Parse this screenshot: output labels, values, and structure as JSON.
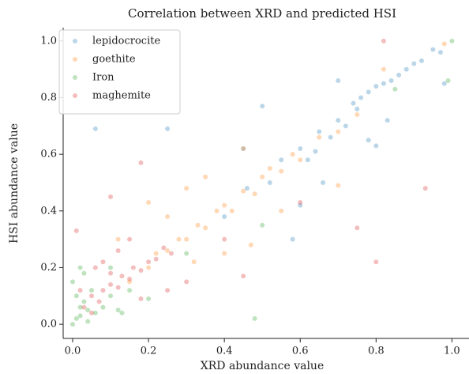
{
  "chart_data": {
    "type": "scatter",
    "title": "Correlation between XRD and predicted HSI",
    "x_label": "XRD abundance value",
    "y_label": "HSI abundance value",
    "xlim": [
      -0.025,
      1.045
    ],
    "ylim": [
      -0.05,
      1.047
    ],
    "xticks": [
      {
        "value": 0,
        "label": "0.0"
      },
      0.2,
      0.4,
      0.6,
      0.8,
      {
        "value": 1,
        "label": "1.0"
      }
    ],
    "yticks": [
      {
        "value": 0,
        "label": "0.0"
      },
      0.2,
      0.4,
      0.6,
      0.8,
      {
        "value": 1,
        "label": "1.0"
      }
    ],
    "legend": "upper left",
    "grid": false,
    "series": [
      {
        "name": "lepidocrocite",
        "color": "#1f77b4",
        "x": [
          0.55,
          0.6,
          0.62,
          0.65,
          0.68,
          0.7,
          0.72,
          0.74,
          0.75,
          0.76,
          0.78,
          0.8,
          0.82,
          0.84,
          0.86,
          0.88,
          0.9,
          0.92,
          0.95,
          0.97,
          0.06,
          0.25,
          0.5,
          0.6,
          0.66,
          0.7,
          0.78,
          0.83,
          0.98,
          0.45,
          0.52,
          0.58,
          0.4,
          0.46,
          0.8,
          0.64
        ],
        "y": [
          0.58,
          0.62,
          0.58,
          0.68,
          0.66,
          0.72,
          0.7,
          0.78,
          0.76,
          0.8,
          0.82,
          0.84,
          0.85,
          0.86,
          0.88,
          0.9,
          0.92,
          0.93,
          0.97,
          0.96,
          0.69,
          0.69,
          0.77,
          0.42,
          0.5,
          0.86,
          0.65,
          0.72,
          0.85,
          0.62,
          0.5,
          0.3,
          0.38,
          0.48,
          0.63,
          0.61
        ]
      },
      {
        "name": "goethite",
        "color": "#ff7f0e",
        "x": [
          0.15,
          0.2,
          0.22,
          0.25,
          0.28,
          0.3,
          0.33,
          0.35,
          0.38,
          0.4,
          0.42,
          0.45,
          0.48,
          0.5,
          0.52,
          0.55,
          0.58,
          0.6,
          0.65,
          0.7,
          0.75,
          0.3,
          0.2,
          0.12,
          0.35,
          0.4,
          0.47,
          0.55,
          0.45,
          0.7,
          0.82,
          0.98,
          0.32,
          0.25
        ],
        "y": [
          0.15,
          0.2,
          0.25,
          0.26,
          0.3,
          0.3,
          0.35,
          0.34,
          0.4,
          0.42,
          0.4,
          0.47,
          0.46,
          0.52,
          0.55,
          0.54,
          0.6,
          0.58,
          0.66,
          0.68,
          0.74,
          0.48,
          0.43,
          0.3,
          0.52,
          0.25,
          0.28,
          0.4,
          0.62,
          0.49,
          0.9,
          0.99,
          0.22,
          0.38
        ]
      },
      {
        "name": "Iron",
        "color": "#2ca02c",
        "x": [
          0,
          0.01,
          0.02,
          0.02,
          0.03,
          0.01,
          0.04,
          0.05,
          0,
          0.03,
          0.02,
          0.06,
          0.08,
          0.1,
          0.12,
          0.15,
          0.2,
          0.1,
          0.3,
          0.5,
          0.48,
          0.85,
          0.99,
          1,
          0.13,
          0.04
        ],
        "y": [
          0,
          0.02,
          0.03,
          0.06,
          0.08,
          0.1,
          0.05,
          0.12,
          0.15,
          0.18,
          0.2,
          0.04,
          0.06,
          0.1,
          0.05,
          0.12,
          0.09,
          0.2,
          0.25,
          0.35,
          0.02,
          0.83,
          0.86,
          1,
          0.04,
          0.01
        ]
      },
      {
        "name": "maghemite",
        "color": "#d62728",
        "x": [
          0.05,
          0.07,
          0.08,
          0.1,
          0.12,
          0.1,
          0.13,
          0.15,
          0.16,
          0.18,
          0.2,
          0.22,
          0.24,
          0.26,
          0.03,
          0.05,
          0.02,
          0.08,
          0.12,
          0.18,
          0.25,
          0.01,
          0.1,
          0.18,
          0.45,
          0.3,
          0.15,
          0.6,
          0.75,
          0.8,
          0.82,
          0.93,
          0.4,
          0.06
        ],
        "y": [
          0.1,
          0.08,
          0.12,
          0.14,
          0.13,
          0.18,
          0.17,
          0.16,
          0.2,
          0.19,
          0.22,
          0.23,
          0.27,
          0.25,
          0.06,
          0.04,
          0.12,
          0.22,
          0.26,
          0.09,
          0.12,
          0.33,
          0.45,
          0.57,
          0.17,
          0.15,
          0.3,
          0.43,
          0.34,
          0.22,
          1,
          0.48,
          0.3,
          0.2
        ]
      }
    ]
  }
}
